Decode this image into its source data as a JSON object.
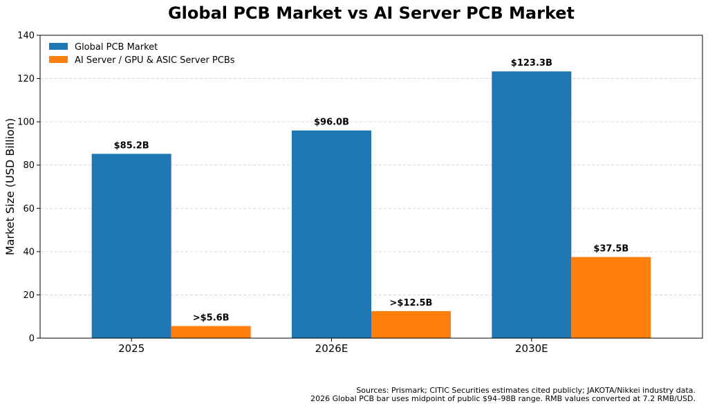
{
  "chart_data": {
    "type": "bar",
    "title": "Global PCB Market vs AI Server PCB Market",
    "xlabel": "",
    "ylabel": "Market Size (USD Billion)",
    "ylim": [
      0,
      140
    ],
    "yticks": [
      0,
      20,
      40,
      60,
      80,
      100,
      120,
      140
    ],
    "categories": [
      "2025",
      "2026E",
      "2030E"
    ],
    "grid": "y-dashed",
    "legend_position": "top-left",
    "series": [
      {
        "name": "Global PCB Market",
        "color": "#1f77b4",
        "values": [
          85.2,
          96.0,
          123.3
        ],
        "labels": [
          "$85.2B",
          "$96.0B",
          "$123.3B"
        ]
      },
      {
        "name": "AI Server / GPU & ASIC Server PCBs",
        "color": "#ff7f0e",
        "values": [
          5.6,
          12.5,
          37.5
        ],
        "labels": [
          ">$5.6B",
          ">$12.5B",
          "$37.5B"
        ]
      }
    ]
  },
  "footnotes": {
    "line1": "Sources: Prismark; CITIC Securities estimates cited publicly; JAKOTA/Nikkei industry data.",
    "line2": "2026 Global PCB bar uses midpoint of public $94–98B range. RMB values converted at 7.2 RMB/USD."
  }
}
